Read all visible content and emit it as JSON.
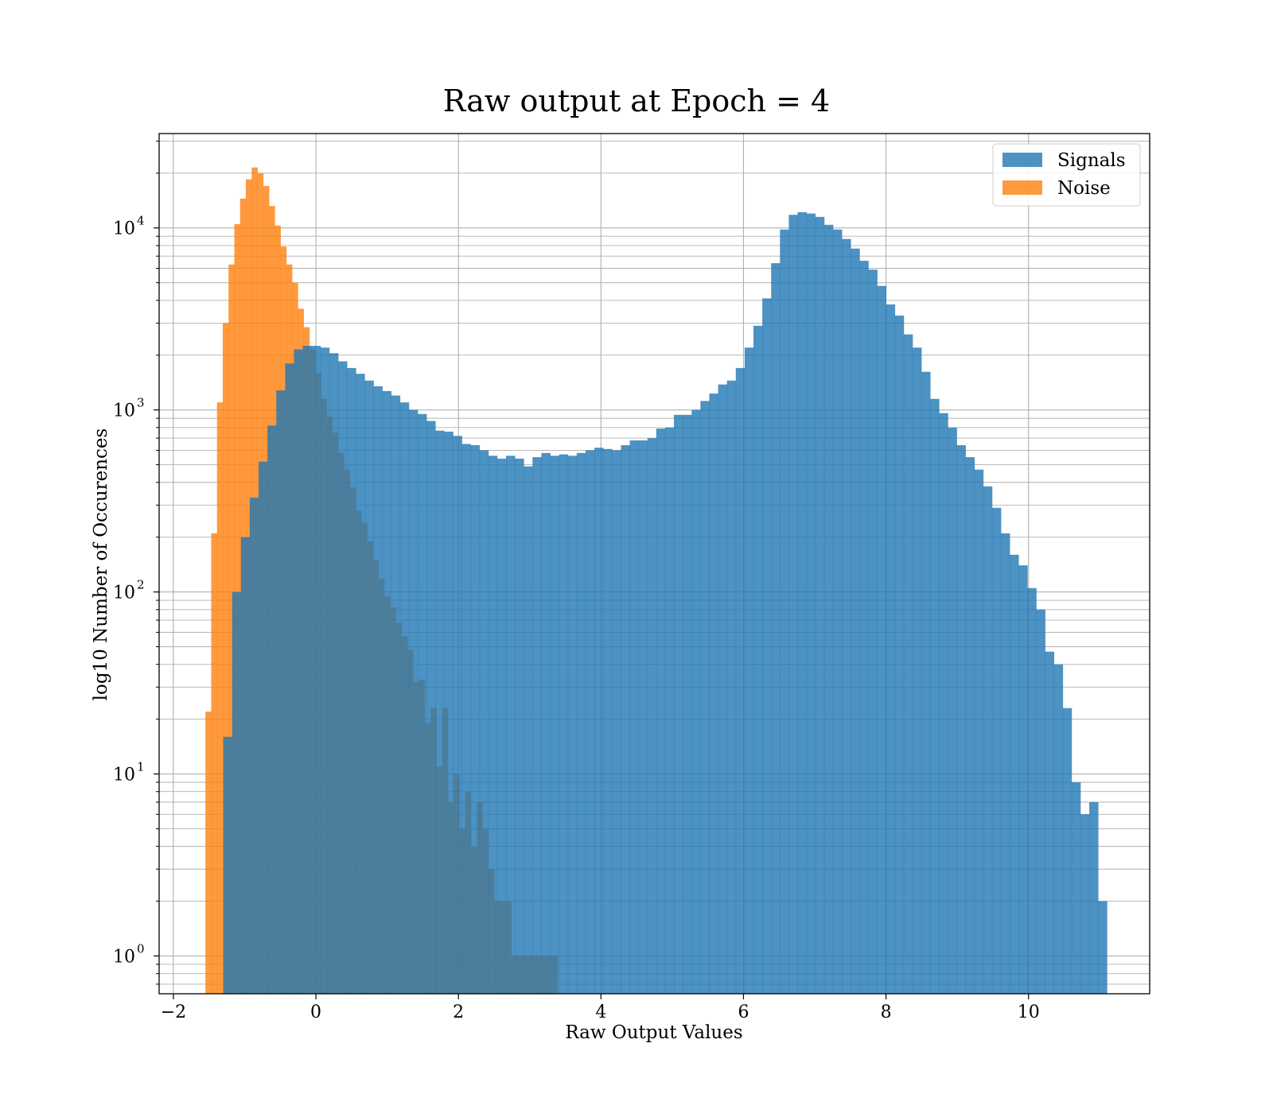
{
  "chart_data": {
    "type": "histogram",
    "title": "Raw output at Epoch = 4",
    "xlabel": "Raw Output Values",
    "ylabel": "log10 Number of Occurences",
    "xlim": [
      -2.2,
      11.7
    ],
    "ylim": [
      0.62,
      33000
    ],
    "yscale": "log",
    "grid": true,
    "legend_position": "top-right",
    "xticks": [
      -2,
      0,
      2,
      4,
      6,
      8,
      10
    ],
    "xtick_labels": [
      "−2",
      "0",
      "2",
      "4",
      "6",
      "8",
      "10"
    ],
    "yticks": [
      1,
      10,
      100,
      1000,
      10000
    ],
    "ytick_labels": [
      {
        "base": "10",
        "exp": "0"
      },
      {
        "base": "10",
        "exp": "1"
      },
      {
        "base": "10",
        "exp": "2"
      },
      {
        "base": "10",
        "exp": "3"
      },
      {
        "base": "10",
        "exp": "4"
      }
    ],
    "series": [
      {
        "name": "Signals",
        "color": "#1f77b4",
        "alpha": 0.8,
        "bin_start": -1.3,
        "bin_width": 0.124,
        "counts": [
          16,
          100,
          200,
          330,
          520,
          820,
          1280,
          1800,
          2150,
          2250,
          2250,
          2200,
          2050,
          1850,
          1700,
          1580,
          1450,
          1350,
          1270,
          1200,
          1100,
          1000,
          950,
          870,
          770,
          760,
          720,
          650,
          640,
          600,
          560,
          540,
          560,
          540,
          490,
          550,
          580,
          560,
          570,
          560,
          580,
          600,
          620,
          610,
          600,
          640,
          680,
          680,
          700,
          790,
          800,
          940,
          940,
          1000,
          1120,
          1230,
          1380,
          1450,
          1700,
          2200,
          2900,
          4100,
          6400,
          9800,
          11800,
          12200,
          12000,
          11500,
          10400,
          9800,
          8700,
          7700,
          6600,
          5900,
          4800,
          3800,
          3300,
          2600,
          2200,
          1620,
          1150,
          960,
          800,
          640,
          550,
          470,
          380,
          290,
          210,
          160,
          140,
          105,
          80,
          47,
          40,
          23,
          9,
          6,
          7,
          2
        ]
      },
      {
        "name": "Noise",
        "color": "#ff7f0e",
        "alpha": 0.8,
        "bin_start": -1.55,
        "bin_width": 0.081,
        "counts": [
          22,
          210,
          1100,
          3000,
          6300,
          10500,
          14500,
          18500,
          21500,
          20000,
          17000,
          13200,
          10300,
          7900,
          6300,
          5000,
          3600,
          2850,
          2150,
          1600,
          1150,
          920,
          750,
          580,
          470,
          375,
          280,
          240,
          190,
          150,
          118,
          95,
          82,
          68,
          57,
          48,
          32,
          33,
          19,
          23,
          11,
          23,
          7,
          10,
          5,
          8,
          4,
          7,
          5,
          3,
          2,
          2,
          2,
          1,
          1,
          1,
          1,
          1,
          1,
          1,
          1
        ]
      }
    ]
  }
}
